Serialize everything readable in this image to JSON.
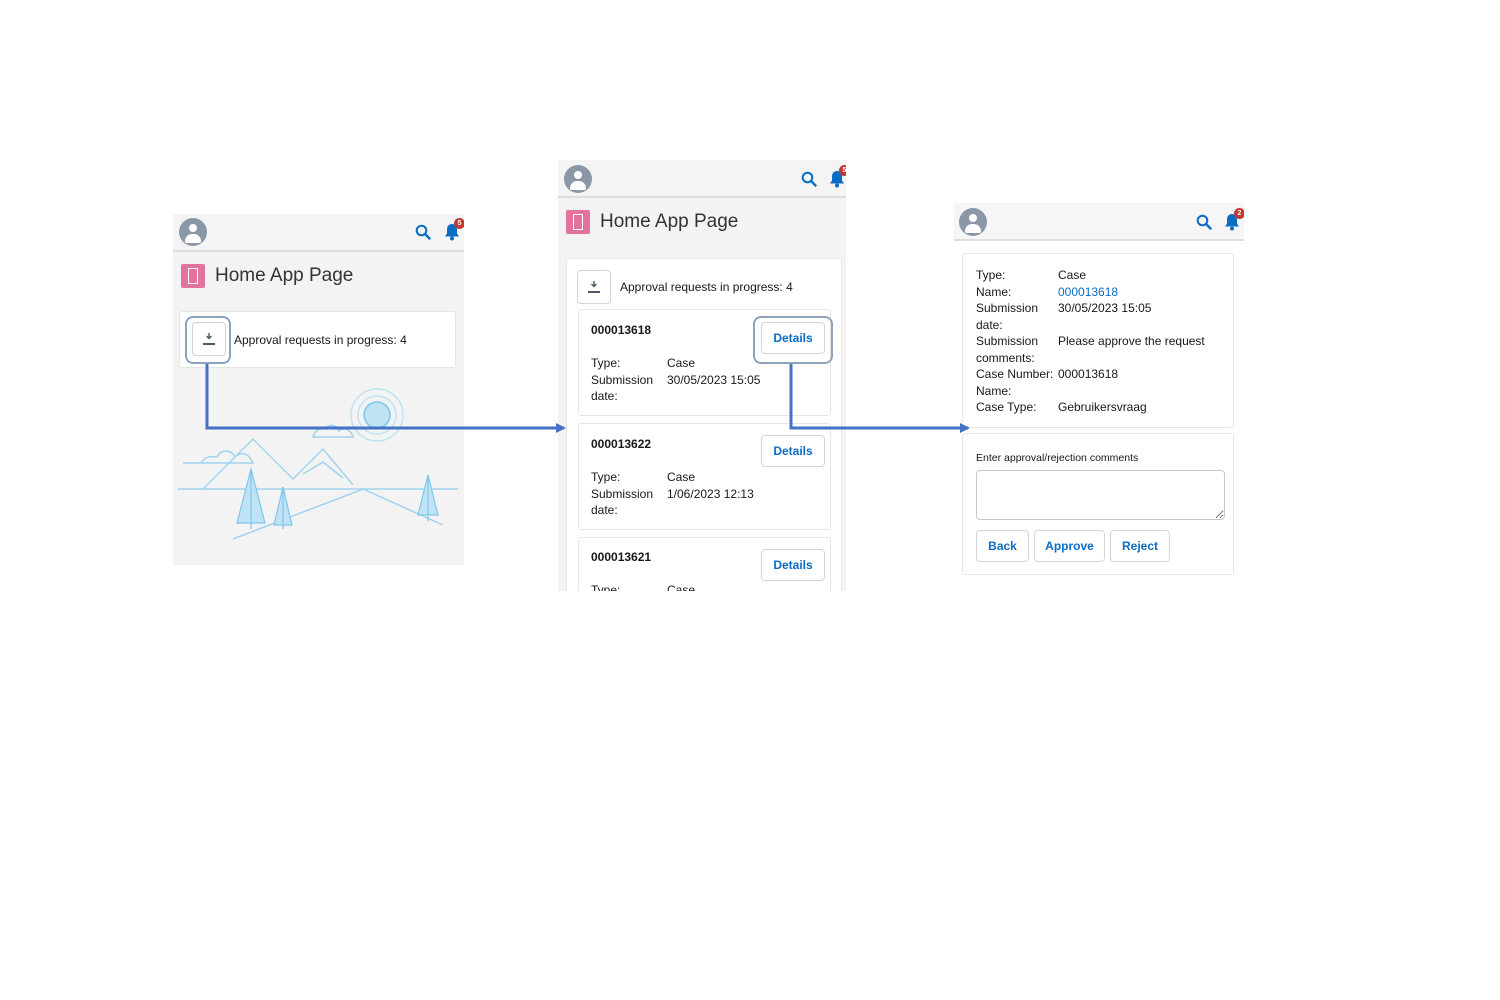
{
  "screen1": {
    "header": {
      "notifications_count": "5"
    },
    "app_title": "Home App Page",
    "approvals_text": "Approval requests in progress: 4"
  },
  "screen2": {
    "header": {
      "notifications_count": "5"
    },
    "app_title": "Home App Page",
    "approvals_text": "Approval requests in progress: 4",
    "requests": [
      {
        "id": "000013618",
        "type_label": "Type:",
        "type_value": "Case",
        "date_label": "Submission",
        "date_label2": "date:",
        "date_value": "30/05/2023 15:05",
        "details_label": "Details"
      },
      {
        "id": "000013622",
        "type_label": "Type:",
        "type_value": "Case",
        "date_label": "Submission",
        "date_label2": "date:",
        "date_value": "1/06/2023 12:13",
        "details_label": "Details"
      },
      {
        "id": "000013621",
        "type_label": "Type:",
        "type_value": "Case",
        "details_label": "Details"
      }
    ]
  },
  "screen3": {
    "header": {
      "notifications_count": "2"
    },
    "fields": [
      {
        "label": "Type:",
        "value": "Case"
      },
      {
        "label": "Name:",
        "value": "000013618"
      },
      {
        "label": "Submission date:",
        "value": "30/05/2023 15:05"
      },
      {
        "label": "Submission comments:",
        "value": "Please approve the request"
      },
      {
        "label": "Case Number: Name:",
        "value": "000013618"
      },
      {
        "label": "Case Type:",
        "value": "Gebruikersvraag"
      }
    ],
    "comments_label": "Enter approval/rejection comments",
    "comments_value": "",
    "buttons": {
      "back": "Back",
      "approve": "Approve",
      "reject": "Reject"
    }
  },
  "colors": {
    "accent": "#0b6cc4",
    "connector": "#4472c4",
    "app_icon": "#e3739d",
    "badge": "#c23934"
  }
}
